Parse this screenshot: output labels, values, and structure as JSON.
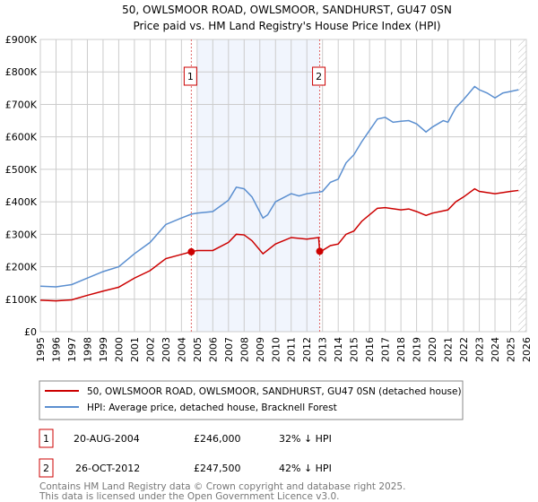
{
  "chart_data": {
    "type": "line",
    "title": "50, OWLSMOOR ROAD, OWLSMOOR, SANDHURST, GU47 0SN",
    "subtitle": "Price paid vs. HM Land Registry's House Price Index (HPI)",
    "xlim": [
      1995,
      2026
    ],
    "ylim": [
      0,
      900000
    ],
    "x_ticks": [
      "1995",
      "1996",
      "1997",
      "1998",
      "1999",
      "2000",
      "2001",
      "2002",
      "2003",
      "2004",
      "2005",
      "2006",
      "2007",
      "2008",
      "2009",
      "2010",
      "2011",
      "2012",
      "2013",
      "2014",
      "2015",
      "2016",
      "2017",
      "2018",
      "2019",
      "2020",
      "2021",
      "2022",
      "2023",
      "2024",
      "2025",
      "2026"
    ],
    "y_ticks": [
      {
        "v": 0,
        "label": "£0"
      },
      {
        "v": 100000,
        "label": "£100K"
      },
      {
        "v": 200000,
        "label": "£200K"
      },
      {
        "v": 300000,
        "label": "£300K"
      },
      {
        "v": 400000,
        "label": "£400K"
      },
      {
        "v": 500000,
        "label": "£500K"
      },
      {
        "v": 600000,
        "label": "£600K"
      },
      {
        "v": 700000,
        "label": "£700K"
      },
      {
        "v": 800000,
        "label": "£800K"
      },
      {
        "v": 900000,
        "label": "£900K"
      }
    ],
    "grid": true,
    "shaded_range": [
      2005,
      2012.82
    ],
    "hatched_from": 2025.5,
    "series": [
      {
        "name": "50, OWLSMOOR ROAD, OWLSMOOR, SANDHURST, GU47 0SN (detached house)",
        "color": "#cc0000",
        "x": [
          1995,
          1996,
          1997,
          1998,
          1999,
          2000,
          2001,
          2002,
          2003,
          2004,
          2004.63,
          2005,
          2006,
          2007,
          2007.5,
          2008,
          2008.5,
          2009.2,
          2010,
          2011,
          2012,
          2012.75,
          2012.82,
          2013,
          2013.5,
          2014,
          2014.5,
          2015,
          2015.5,
          2016,
          2016.5,
          2017,
          2018,
          2018.5,
          2019,
          2019.6,
          2020,
          2021,
          2021.5,
          2022,
          2022.7,
          2023,
          2024,
          2025,
          2025.5
        ],
        "y": [
          97000,
          95000,
          98000,
          112000,
          125000,
          137000,
          165000,
          188000,
          225000,
          238000,
          246000,
          250000,
          250000,
          275000,
          300000,
          298000,
          280000,
          240000,
          270000,
          290000,
          285000,
          290000,
          247500,
          250000,
          265000,
          270000,
          300000,
          310000,
          340000,
          360000,
          380000,
          382000,
          375000,
          378000,
          370000,
          358000,
          365000,
          375000,
          400000,
          415000,
          440000,
          432000,
          425000,
          432000,
          435000
        ]
      },
      {
        "name": "HPI: Average price, detached house, Bracknell Forest",
        "color": "#5b8fd0",
        "x": [
          1995,
          1996,
          1997,
          1998,
          1999,
          2000,
          2001,
          2002,
          2003,
          2004,
          2004.63,
          2005,
          2006,
          2007,
          2007.5,
          2008,
          2008.5,
          2009.2,
          2009.5,
          2010,
          2011,
          2011.5,
          2012,
          2012.8,
          2013,
          2013.5,
          2014,
          2014.5,
          2015,
          2015.5,
          2016,
          2016.5,
          2017,
          2017.5,
          2018,
          2018.5,
          2019,
          2019.6,
          2020,
          2020.7,
          2021,
          2021.5,
          2022,
          2022.7,
          2023,
          2023.5,
          2024,
          2024.5,
          2025,
          2025.5
        ],
        "y": [
          140000,
          138000,
          145000,
          165000,
          185000,
          200000,
          240000,
          275000,
          330000,
          350000,
          362000,
          365000,
          370000,
          405000,
          445000,
          440000,
          415000,
          350000,
          360000,
          400000,
          425000,
          418000,
          425000,
          430000,
          432000,
          460000,
          470000,
          520000,
          545000,
          585000,
          620000,
          655000,
          660000,
          645000,
          648000,
          650000,
          640000,
          615000,
          630000,
          650000,
          645000,
          690000,
          715000,
          755000,
          745000,
          735000,
          720000,
          735000,
          740000,
          745000
        ]
      }
    ],
    "sales": [
      {
        "id": "1",
        "x": 2004.63,
        "date": "20-AUG-2004",
        "price": 246000,
        "price_label": "£246,000",
        "hpi": "32% ↓ HPI"
      },
      {
        "id": "2",
        "x": 2012.82,
        "date": "26-OCT-2012",
        "price": 247500,
        "price_label": "£247,500",
        "hpi": "42% ↓ HPI"
      }
    ]
  },
  "footer": {
    "line1": "Contains HM Land Registry data © Crown copyright and database right 2025.",
    "line2": "This data is licensed under the Open Government Licence v3.0."
  }
}
